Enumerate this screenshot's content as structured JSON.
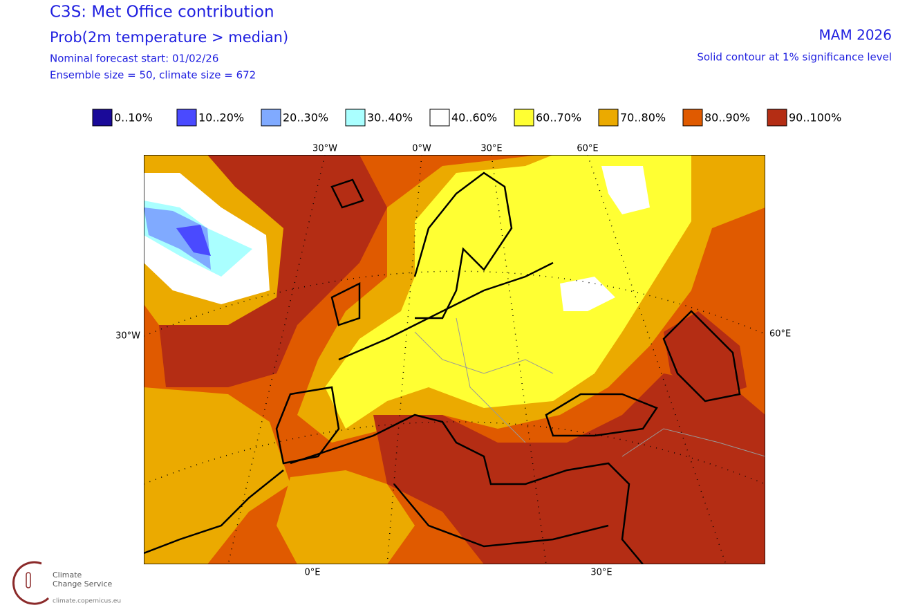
{
  "header": {
    "title": "C3S: Met Office contribution",
    "subtitle": "Prob(2m temperature > median)",
    "forecast_start": "Nominal forecast start: 01/02/26",
    "ensemble": "Ensemble size = 50, climate size = 672",
    "season": "MAM 2026",
    "significance": "Solid contour at 1% significance level"
  },
  "legend": [
    {
      "label": "0..10%",
      "color": "#1a0a99"
    },
    {
      "label": "10..20%",
      "color": "#4a4aff"
    },
    {
      "label": "20..30%",
      "color": "#80aaff"
    },
    {
      "label": "30..40%",
      "color": "#aaffff"
    },
    {
      "label": "40..60%",
      "color": "#ffffff"
    },
    {
      "label": "60..70%",
      "color": "#ffff33"
    },
    {
      "label": "70..80%",
      "color": "#ebaa00"
    },
    {
      "label": "80..90%",
      "color": "#e05a00"
    },
    {
      "label": "90..100%",
      "color": "#b42d14"
    }
  ],
  "axis_labels": {
    "top": [
      "30°W",
      "0°W",
      "30°E",
      "60°E"
    ],
    "left": "30°W",
    "right": "60°E",
    "bottom": [
      "0°E",
      "30°E"
    ]
  },
  "logo": {
    "line1": "Climate",
    "line2": "Change Service",
    "url": "climate.copernicus.eu"
  }
}
